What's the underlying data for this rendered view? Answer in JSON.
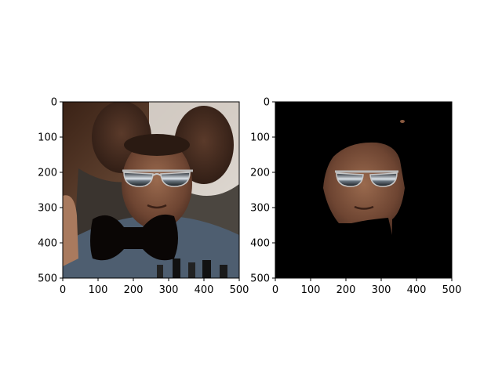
{
  "figure": {
    "background": "#ffffff"
  },
  "chart_data": [
    {
      "type": "image",
      "title": "",
      "xlabel": "",
      "ylabel": "",
      "xlim": [
        0,
        500
      ],
      "ylim": [
        500,
        0
      ],
      "xticks": [
        0,
        100,
        200,
        300,
        400,
        500
      ],
      "yticks": [
        0,
        100,
        200,
        300,
        400,
        500
      ],
      "content": "photo with sunglasses and black bow-tie overlay",
      "colors": {
        "bowtie": "#0a0605",
        "sunglasses": "#1a1f26",
        "lens_reflection": "#c9d3dc",
        "background": "#5a3a26"
      }
    },
    {
      "type": "image",
      "title": "",
      "xlabel": "",
      "ylabel": "",
      "xlim": [
        0,
        500
      ],
      "ylim": [
        500,
        0
      ],
      "xticks": [
        0,
        100,
        200,
        300,
        400,
        500
      ],
      "yticks": [
        0,
        100,
        200,
        300,
        400,
        500
      ],
      "content": "segmented face with sunglasses on black background",
      "colors": {
        "background": "#000000",
        "face": "#7a4f3a",
        "sunglasses": "#1a1f26"
      }
    }
  ]
}
